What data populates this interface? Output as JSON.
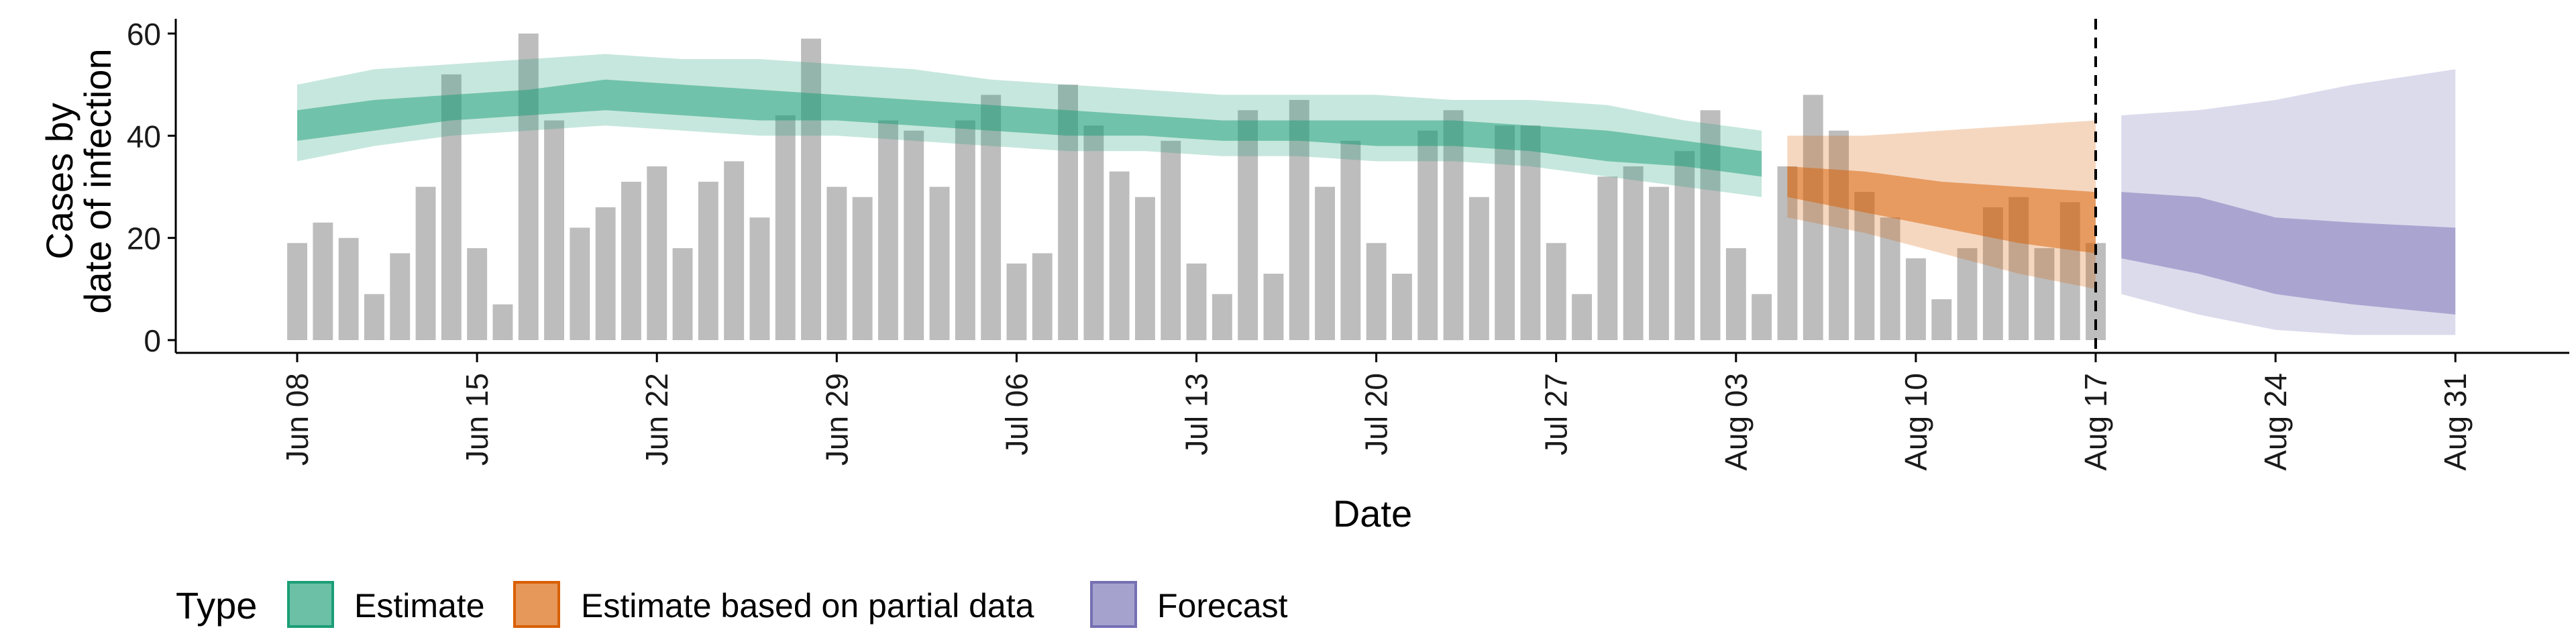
{
  "chart_data": {
    "type": "bar",
    "xlabel": "Date",
    "ylabel_lines": [
      "Cases by",
      "date of infection"
    ],
    "ylim": [
      0,
      60
    ],
    "yticks": [
      0,
      20,
      40,
      60
    ],
    "xticks": [
      "Jun 08",
      "Jun 15",
      "Jun 22",
      "Jun 29",
      "Jul 06",
      "Jul 13",
      "Jul 20",
      "Jul 27",
      "Aug 03",
      "Aug 10",
      "Aug 17",
      "Aug 24",
      "Aug 31"
    ],
    "vline_date": "2020-08-17",
    "grid": false,
    "bars": {
      "color": "#bdbdbd",
      "dates": [
        "2020-06-08",
        "2020-06-09",
        "2020-06-10",
        "2020-06-11",
        "2020-06-12",
        "2020-06-13",
        "2020-06-14",
        "2020-06-15",
        "2020-06-16",
        "2020-06-17",
        "2020-06-18",
        "2020-06-19",
        "2020-06-20",
        "2020-06-21",
        "2020-06-22",
        "2020-06-23",
        "2020-06-24",
        "2020-06-25",
        "2020-06-26",
        "2020-06-27",
        "2020-06-28",
        "2020-06-29",
        "2020-06-30",
        "2020-07-01",
        "2020-07-02",
        "2020-07-03",
        "2020-07-04",
        "2020-07-05",
        "2020-07-06",
        "2020-07-07",
        "2020-07-08",
        "2020-07-09",
        "2020-07-10",
        "2020-07-11",
        "2020-07-12",
        "2020-07-13",
        "2020-07-14",
        "2020-07-15",
        "2020-07-16",
        "2020-07-17",
        "2020-07-18",
        "2020-07-19",
        "2020-07-20",
        "2020-07-21",
        "2020-07-22",
        "2020-07-23",
        "2020-07-24",
        "2020-07-25",
        "2020-07-26",
        "2020-07-27",
        "2020-07-28",
        "2020-07-29",
        "2020-07-30",
        "2020-07-31",
        "2020-08-01",
        "2020-08-02",
        "2020-08-03",
        "2020-08-04",
        "2020-08-05",
        "2020-08-06",
        "2020-08-07",
        "2020-08-08",
        "2020-08-09",
        "2020-08-10",
        "2020-08-11",
        "2020-08-12",
        "2020-08-13",
        "2020-08-14",
        "2020-08-15",
        "2020-08-16",
        "2020-08-17"
      ],
      "values": [
        19,
        23,
        20,
        9,
        17,
        30,
        52,
        18,
        7,
        60,
        43,
        22,
        26,
        31,
        34,
        18,
        31,
        35,
        24,
        44,
        59,
        30,
        28,
        43,
        41,
        30,
        43,
        48,
        15,
        17,
        50,
        42,
        33,
        28,
        39,
        15,
        9,
        45,
        13,
        47,
        30,
        39,
        19,
        13,
        41,
        45,
        28,
        42,
        42,
        19,
        9,
        32,
        34,
        30,
        37,
        45,
        18,
        9,
        34,
        48,
        41,
        29,
        24,
        16,
        8,
        18,
        26,
        28,
        18,
        27,
        19
      ]
    },
    "series": [
      {
        "name": "Estimate",
        "color": "#1b9e77",
        "dates": [
          "2020-06-08",
          "2020-06-11",
          "2020-06-14",
          "2020-06-17",
          "2020-06-20",
          "2020-06-23",
          "2020-06-26",
          "2020-06-29",
          "2020-07-02",
          "2020-07-05",
          "2020-07-08",
          "2020-07-11",
          "2020-07-14",
          "2020-07-17",
          "2020-07-20",
          "2020-07-23",
          "2020-07-26",
          "2020-07-29",
          "2020-08-01",
          "2020-08-04"
        ],
        "lower90": [
          35,
          38,
          40,
          41,
          42,
          41,
          40,
          40,
          39,
          38,
          37,
          37,
          36,
          36,
          35,
          35,
          34,
          32,
          30,
          28
        ],
        "lower50": [
          39,
          41,
          43,
          44,
          45,
          44,
          43,
          43,
          42,
          41,
          40,
          40,
          39,
          39,
          38,
          38,
          37,
          35,
          34,
          32
        ],
        "upper50": [
          45,
          47,
          48,
          49,
          51,
          50,
          49,
          48,
          47,
          46,
          45,
          44,
          43,
          43,
          43,
          43,
          42,
          41,
          39,
          37
        ],
        "upper90": [
          50,
          53,
          54,
          55,
          56,
          55,
          55,
          54,
          53,
          51,
          50,
          49,
          48,
          48,
          48,
          47,
          47,
          46,
          43,
          41
        ]
      },
      {
        "name": "Estimate based on partial data",
        "color": "#d95f02",
        "dates": [
          "2020-08-05",
          "2020-08-08",
          "2020-08-11",
          "2020-08-14",
          "2020-08-17"
        ],
        "lower90": [
          24,
          21,
          17,
          13,
          10
        ],
        "lower50": [
          28,
          25,
          22,
          19,
          17
        ],
        "upper50": [
          34,
          33,
          31,
          30,
          29
        ],
        "upper90": [
          40,
          40,
          41,
          42,
          43
        ]
      },
      {
        "name": "Forecast",
        "color": "#7570b3",
        "dates": [
          "2020-08-18",
          "2020-08-21",
          "2020-08-24",
          "2020-08-27",
          "2020-08-31"
        ],
        "lower90": [
          9,
          5,
          2,
          1,
          1
        ],
        "lower50": [
          16,
          13,
          9,
          7,
          5
        ],
        "upper50": [
          29,
          28,
          24,
          23,
          22
        ],
        "upper90": [
          44,
          45,
          47,
          50,
          53
        ]
      }
    ],
    "legend": {
      "title": "Type",
      "position": "bottom",
      "items": [
        "Estimate",
        "Estimate based on partial data",
        "Forecast"
      ]
    }
  }
}
